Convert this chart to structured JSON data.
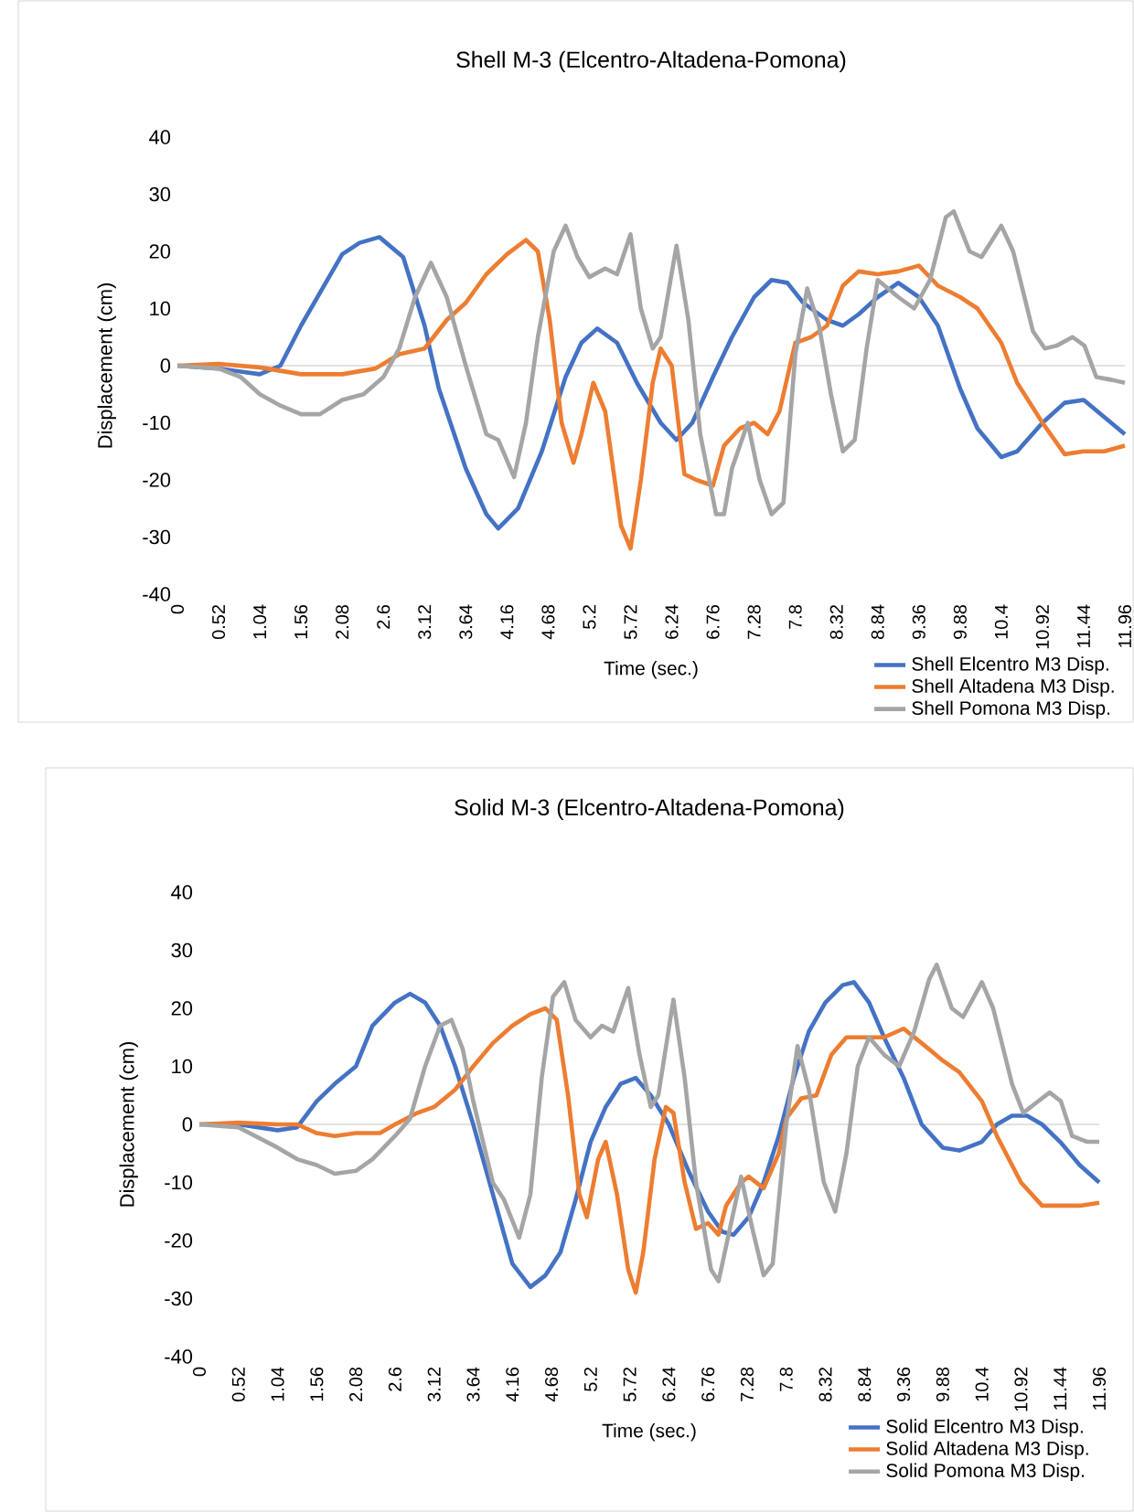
{
  "chart_data": [
    {
      "type": "line",
      "title": "Shell M-3 (Elcentro-Altadena-Pomona)",
      "xlabel": "Time (sec.)",
      "ylabel": "Displacement (cm)",
      "xlim": [
        0,
        11.96
      ],
      "xticks": [
        0,
        0.52,
        1.04,
        1.56,
        2.08,
        2.6,
        3.12,
        3.64,
        4.16,
        4.68,
        5.2,
        5.72,
        6.24,
        6.76,
        7.28,
        7.8,
        8.32,
        8.84,
        9.36,
        9.88,
        10.4,
        10.92,
        11.44,
        11.96
      ],
      "ylim": [
        -40,
        40
      ],
      "yticks": [
        -40,
        -30,
        -20,
        -10,
        0,
        10,
        20,
        30,
        40
      ],
      "legend": "bottom right",
      "series": [
        {
          "name": "Shell Elcentro M3 Disp.",
          "color": "#4472c4",
          "x": [
            0,
            0.52,
            1.04,
            1.3,
            1.56,
            2.08,
            2.3,
            2.55,
            2.85,
            3.12,
            3.3,
            3.64,
            3.9,
            4.05,
            4.3,
            4.6,
            4.9,
            5.1,
            5.3,
            5.55,
            5.8,
            6.1,
            6.3,
            6.5,
            6.76,
            7.0,
            7.28,
            7.5,
            7.7,
            7.9,
            8.2,
            8.4,
            8.6,
            8.84,
            9.1,
            9.36,
            9.6,
            9.88,
            10.1,
            10.4,
            10.6,
            10.92,
            11.2,
            11.44,
            11.7,
            11.96
          ],
          "values": [
            0,
            -0.5,
            -1.5,
            0,
            7,
            19.5,
            21.5,
            22.5,
            19,
            7,
            -4,
            -18,
            -26,
            -28.5,
            -25,
            -15,
            -2,
            4,
            6.5,
            4,
            -3,
            -10,
            -13,
            -10,
            -2,
            5,
            12,
            15,
            14.5,
            11,
            8,
            7,
            9,
            12,
            14.5,
            12,
            7,
            -4,
            -11,
            -16,
            -15,
            -10,
            -6.5,
            -6,
            -9,
            -12
          ]
        },
        {
          "name": "Shell Altadena M3 Disp.",
          "color": "#ed7d31",
          "x": [
            0,
            0.52,
            1.04,
            1.56,
            2.08,
            2.5,
            2.8,
            3.12,
            3.4,
            3.64,
            3.9,
            4.16,
            4.4,
            4.55,
            4.7,
            4.85,
            5.0,
            5.1,
            5.25,
            5.4,
            5.6,
            5.72,
            5.85,
            6.0,
            6.1,
            6.24,
            6.4,
            6.55,
            6.76,
            6.9,
            7.1,
            7.28,
            7.45,
            7.6,
            7.8,
            8.0,
            8.2,
            8.4,
            8.6,
            8.84,
            9.1,
            9.36,
            9.6,
            9.88,
            10.1,
            10.4,
            10.6,
            10.92,
            11.2,
            11.44,
            11.7,
            11.96
          ],
          "values": [
            0,
            0.3,
            -0.3,
            -1.5,
            -1.5,
            -0.5,
            2,
            3,
            8,
            11,
            16,
            19.5,
            22,
            20,
            8,
            -10,
            -17,
            -12,
            -3,
            -8,
            -28,
            -32,
            -20,
            -3,
            3,
            0,
            -19,
            -20,
            -21,
            -14,
            -11,
            -10,
            -12,
            -8,
            4,
            5,
            7,
            14,
            16.5,
            16,
            16.5,
            17.5,
            14,
            12,
            10,
            4,
            -3,
            -10,
            -15.5,
            -15,
            -15,
            -14
          ]
        },
        {
          "name": "Shell Pomona M3 Disp.",
          "color": "#a5a5a5",
          "x": [
            0,
            0.52,
            0.8,
            1.04,
            1.3,
            1.56,
            1.8,
            2.08,
            2.35,
            2.6,
            2.8,
            3.0,
            3.2,
            3.4,
            3.64,
            3.9,
            4.05,
            4.25,
            4.4,
            4.55,
            4.75,
            4.9,
            5.05,
            5.2,
            5.4,
            5.55,
            5.72,
            5.85,
            6.0,
            6.1,
            6.3,
            6.45,
            6.6,
            6.8,
            6.9,
            7.0,
            7.2,
            7.35,
            7.5,
            7.65,
            7.8,
            7.95,
            8.1,
            8.25,
            8.4,
            8.55,
            8.7,
            8.84,
            9.1,
            9.3,
            9.5,
            9.7,
            9.8,
            10.0,
            10.15,
            10.4,
            10.55,
            10.8,
            10.95,
            11.1,
            11.3,
            11.45,
            11.6,
            11.8,
            11.96
          ],
          "values": [
            0,
            -0.5,
            -2,
            -5,
            -7,
            -8.5,
            -8.5,
            -6,
            -5,
            -2,
            3,
            12,
            18,
            12,
            0,
            -12,
            -13,
            -19.5,
            -10,
            5,
            20,
            24.5,
            19,
            15.5,
            17,
            16,
            23,
            10,
            3,
            5,
            21,
            8,
            -12,
            -26,
            -26,
            -18,
            -10,
            -20,
            -26,
            -24,
            2,
            13.5,
            7,
            -5,
            -15,
            -13,
            3,
            15,
            12,
            10,
            15,
            26,
            27,
            20,
            19,
            24.5,
            20,
            6,
            3,
            3.5,
            5,
            3.5,
            -2,
            -2.5,
            -3
          ]
        }
      ]
    },
    {
      "type": "line",
      "title": "Solid M-3 (Elcentro-Altadena-Pomona)",
      "xlabel": "Time (sec.)",
      "ylabel": "Displacement (cm)",
      "xlim": [
        0,
        11.96
      ],
      "xticks": [
        0,
        0.52,
        1.04,
        1.56,
        2.08,
        2.6,
        3.12,
        3.64,
        4.16,
        4.68,
        5.2,
        5.72,
        6.24,
        6.76,
        7.28,
        7.8,
        8.32,
        8.84,
        9.36,
        9.88,
        10.4,
        10.92,
        11.44,
        11.96
      ],
      "ylim": [
        -40,
        40
      ],
      "yticks": [
        -40,
        -30,
        -20,
        -10,
        0,
        10,
        20,
        30,
        40
      ],
      "legend": "bottom right",
      "series": [
        {
          "name": "Solid Elcentro M3 Disp.",
          "color": "#4472c4",
          "x": [
            0,
            0.52,
            1.04,
            1.3,
            1.56,
            1.8,
            2.08,
            2.3,
            2.6,
            2.8,
            3.0,
            3.2,
            3.4,
            3.64,
            3.9,
            4.16,
            4.4,
            4.6,
            4.8,
            5.0,
            5.2,
            5.4,
            5.6,
            5.8,
            6.0,
            6.24,
            6.5,
            6.76,
            6.95,
            7.1,
            7.3,
            7.5,
            7.7,
            7.9,
            8.1,
            8.32,
            8.55,
            8.7,
            8.9,
            9.1,
            9.36,
            9.6,
            9.88,
            10.1,
            10.4,
            10.6,
            10.8,
            11.0,
            11.2,
            11.44,
            11.7,
            11.96
          ],
          "values": [
            0,
            0,
            -1,
            -0.5,
            4,
            7,
            10,
            17,
            21,
            22.5,
            21,
            17,
            10,
            0,
            -12,
            -24,
            -28,
            -26,
            -22,
            -13,
            -3,
            3,
            7,
            8,
            5,
            0,
            -8,
            -15,
            -18.5,
            -19,
            -16,
            -10,
            -2,
            8,
            16,
            21,
            24,
            24.5,
            21,
            15,
            8,
            0,
            -4,
            -4.5,
            -3,
            0,
            1.5,
            1.5,
            0,
            -3,
            -7,
            -10
          ]
        },
        {
          "name": "Solid Altadena M3 Disp.",
          "color": "#ed7d31",
          "x": [
            0,
            0.52,
            1.04,
            1.3,
            1.56,
            1.8,
            2.08,
            2.4,
            2.6,
            2.9,
            3.12,
            3.4,
            3.64,
            3.9,
            4.16,
            4.4,
            4.6,
            4.75,
            4.9,
            5.05,
            5.15,
            5.3,
            5.4,
            5.55,
            5.7,
            5.8,
            5.9,
            6.05,
            6.2,
            6.3,
            6.45,
            6.6,
            6.76,
            6.9,
            7.0,
            7.2,
            7.3,
            7.5,
            7.7,
            7.8,
            8.0,
            8.2,
            8.4,
            8.6,
            8.84,
            9.1,
            9.36,
            9.6,
            9.88,
            10.1,
            10.4,
            10.6,
            10.92,
            11.2,
            11.44,
            11.7,
            11.96
          ],
          "values": [
            0,
            0.3,
            0,
            0,
            -1.5,
            -2,
            -1.5,
            -1.5,
            0,
            2,
            3,
            6,
            10,
            14,
            17,
            19,
            20,
            18,
            5,
            -12,
            -16,
            -6,
            -3,
            -12,
            -25,
            -29,
            -22,
            -6,
            3,
            2,
            -10,
            -18,
            -17,
            -19,
            -14,
            -10,
            -9,
            -11,
            -5,
            1,
            4.5,
            5,
            12,
            15,
            15,
            15,
            16.5,
            14,
            11,
            9,
            4,
            -2,
            -10,
            -14,
            -14,
            -14,
            -13.5
          ]
        },
        {
          "name": "Solid Pomona M3 Disp.",
          "color": "#a5a5a5",
          "x": [
            0,
            0.52,
            1.04,
            1.3,
            1.56,
            1.8,
            2.08,
            2.3,
            2.6,
            2.8,
            3.0,
            3.2,
            3.35,
            3.5,
            3.64,
            3.9,
            4.05,
            4.25,
            4.4,
            4.55,
            4.7,
            4.85,
            5.0,
            5.2,
            5.35,
            5.5,
            5.7,
            5.85,
            6.0,
            6.1,
            6.3,
            6.45,
            6.6,
            6.8,
            6.9,
            7.05,
            7.2,
            7.35,
            7.5,
            7.62,
            7.8,
            7.95,
            8.1,
            8.3,
            8.45,
            8.6,
            8.75,
            8.9,
            9.1,
            9.3,
            9.5,
            9.7,
            9.8,
            10.0,
            10.15,
            10.4,
            10.55,
            10.8,
            10.95,
            11.1,
            11.3,
            11.45,
            11.6,
            11.8,
            11.96
          ],
          "values": [
            0,
            -0.5,
            -4,
            -6,
            -7,
            -8.5,
            -8,
            -6,
            -2,
            1,
            10,
            17,
            18,
            13,
            4,
            -10,
            -13,
            -19.5,
            -12,
            8,
            22,
            24.5,
            18,
            15,
            17,
            16,
            23.5,
            12,
            3,
            5,
            21.5,
            8,
            -10,
            -25,
            -27,
            -18,
            -9,
            -18,
            -26,
            -24,
            0,
            13.5,
            6,
            -10,
            -15,
            -5,
            10,
            15,
            12,
            10,
            16,
            25,
            27.5,
            20,
            18.5,
            24.5,
            20,
            7,
            2,
            3.5,
            5.5,
            4,
            -2,
            -3,
            -3
          ]
        }
      ]
    }
  ]
}
